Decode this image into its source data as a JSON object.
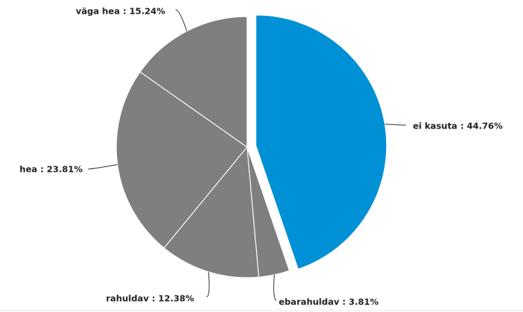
{
  "chart_data": {
    "type": "pie",
    "labels": [
      "ei kasuta : 44.76%",
      "ebarahuldav : 3.81%",
      "rahuldav : 12.38%",
      "hea : 23.81%",
      "väga hea : 15.24%"
    ],
    "values": [
      44.76,
      3.81,
      12.38,
      23.81,
      15.24
    ],
    "colors": [
      "#0090d6",
      "#7f7f7f",
      "#7f7f7f",
      "#7f7f7f",
      "#7f7f7f"
    ]
  }
}
